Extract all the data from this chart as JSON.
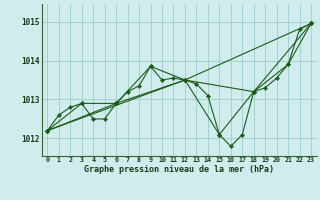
{
  "background_color": "#d0ecec",
  "grid_color": "#a0cccc",
  "line_color": "#1a5c1a",
  "x_ticks": [
    0,
    1,
    2,
    3,
    4,
    5,
    6,
    7,
    8,
    9,
    10,
    11,
    12,
    13,
    14,
    15,
    16,
    17,
    18,
    19,
    20,
    21,
    22,
    23
  ],
  "y_ticks": [
    1012,
    1013,
    1014,
    1015
  ],
  "ylim": [
    1011.55,
    1015.45
  ],
  "xlim": [
    -0.5,
    23.5
  ],
  "xlabel": "Graphe pression niveau de la mer (hPa)",
  "series": [
    {
      "x": [
        0,
        1,
        2,
        3,
        4,
        5,
        6,
        7,
        8,
        9,
        10,
        11,
        12,
        13,
        14,
        15,
        16,
        17,
        18,
        19,
        20,
        21,
        22,
        23
      ],
      "y": [
        1012.2,
        1012.6,
        1012.8,
        1012.9,
        1012.5,
        1012.5,
        1012.9,
        1013.2,
        1013.35,
        1013.85,
        1013.5,
        1013.55,
        1013.5,
        1013.4,
        1013.1,
        1012.1,
        1011.8,
        1012.1,
        1013.2,
        1013.3,
        1013.55,
        1013.9,
        1014.8,
        1014.95
      ],
      "marker": "D",
      "markersize": 2.2
    },
    {
      "x": [
        0,
        3,
        6,
        9,
        12,
        15,
        18,
        21,
        23
      ],
      "y": [
        1012.2,
        1012.9,
        1012.9,
        1013.85,
        1013.5,
        1012.1,
        1013.2,
        1013.9,
        1014.95
      ],
      "marker": "D",
      "markersize": 2.2
    },
    {
      "x": [
        0,
        6,
        12,
        18,
        23
      ],
      "y": [
        1012.2,
        1012.9,
        1013.5,
        1013.2,
        1014.95
      ],
      "marker": "D",
      "markersize": 2.2
    },
    {
      "x": [
        0,
        12,
        23
      ],
      "y": [
        1012.2,
        1013.5,
        1014.95
      ],
      "marker": "D",
      "markersize": 2.2
    }
  ]
}
